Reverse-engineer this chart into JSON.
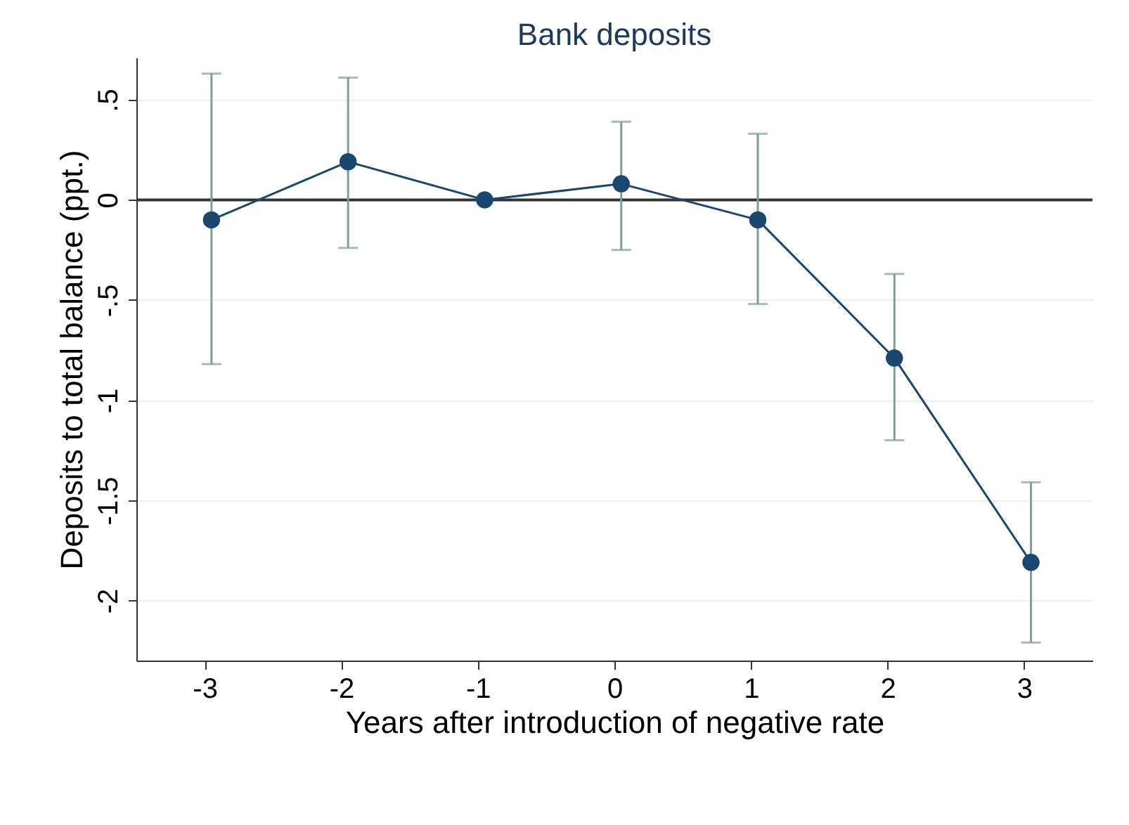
{
  "chart_data": {
    "type": "line",
    "title": "Bank deposits",
    "xlabel": "Years after introduction of negative rate",
    "ylabel": "Deposits to total balance (ppt.)",
    "x": [
      -2.95,
      -1.95,
      -0.95,
      0.05,
      1.05,
      2.05,
      3.05
    ],
    "series": [
      {
        "color": "#1a476f",
        "values": [
          -0.1,
          0.19,
          0,
          0.08,
          -0.1,
          -0.79,
          -1.81
        ],
        "errors": [
          [
            -0.82,
            0.63
          ],
          [
            -0.24,
            0.61
          ],
          null,
          [
            -0.25,
            0.39
          ],
          [
            -0.52,
            0.33
          ],
          [
            -1.2,
            -0.37
          ],
          [
            -2.21,
            -1.41
          ]
        ]
      }
    ],
    "xlim": [
      -3.5,
      3.5
    ],
    "xticks": [
      -3,
      -2,
      -1,
      0,
      1,
      2,
      3
    ],
    "ylim": [
      -2.3,
      0.71
    ],
    "yticks": [
      {
        "value": 0.5,
        "label": ".5"
      },
      0,
      {
        "value": -0.5,
        "label": "-.5"
      },
      -1,
      {
        "value": -1.5,
        "label": "-1.5"
      },
      -2
    ],
    "grid": "y",
    "marker": "circle",
    "line_style": "solid",
    "ref_lines": [
      {
        "axis": "y",
        "value": 0,
        "color": "#333333"
      }
    ]
  }
}
